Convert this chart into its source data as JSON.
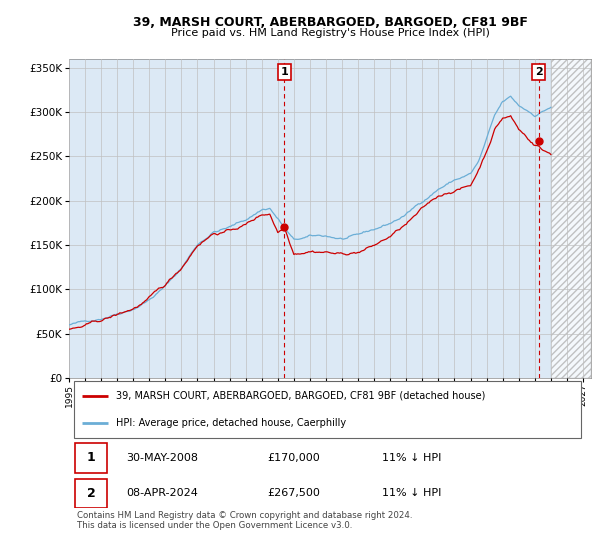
{
  "title": "39, MARSH COURT, ABERBARGOED, BARGOED, CF81 9BF",
  "subtitle": "Price paid vs. HM Land Registry's House Price Index (HPI)",
  "hpi_label": "HPI: Average price, detached house, Caerphilly",
  "price_label": "39, MARSH COURT, ABERBARGOED, BARGOED, CF81 9BF (detached house)",
  "transaction1_date": "30-MAY-2008",
  "transaction1_price": 170000,
  "transaction1_hpi": "11% ↓ HPI",
  "transaction2_date": "08-APR-2024",
  "transaction2_price": 267500,
  "transaction2_hpi": "11% ↓ HPI",
  "hpi_color": "#6baed6",
  "price_color": "#cc0000",
  "background_color": "#ffffff",
  "chart_bg_color": "#dce9f5",
  "grid_color": "#c0c0c0",
  "ylim": [
    0,
    360000
  ],
  "xlim_start": 1995.0,
  "xlim_end": 2027.5,
  "hatch_start": 2025.0,
  "t1_x": 2008.4167,
  "t2_x": 2024.25,
  "footer": "Contains HM Land Registry data © Crown copyright and database right 2024.\nThis data is licensed under the Open Government Licence v3.0."
}
